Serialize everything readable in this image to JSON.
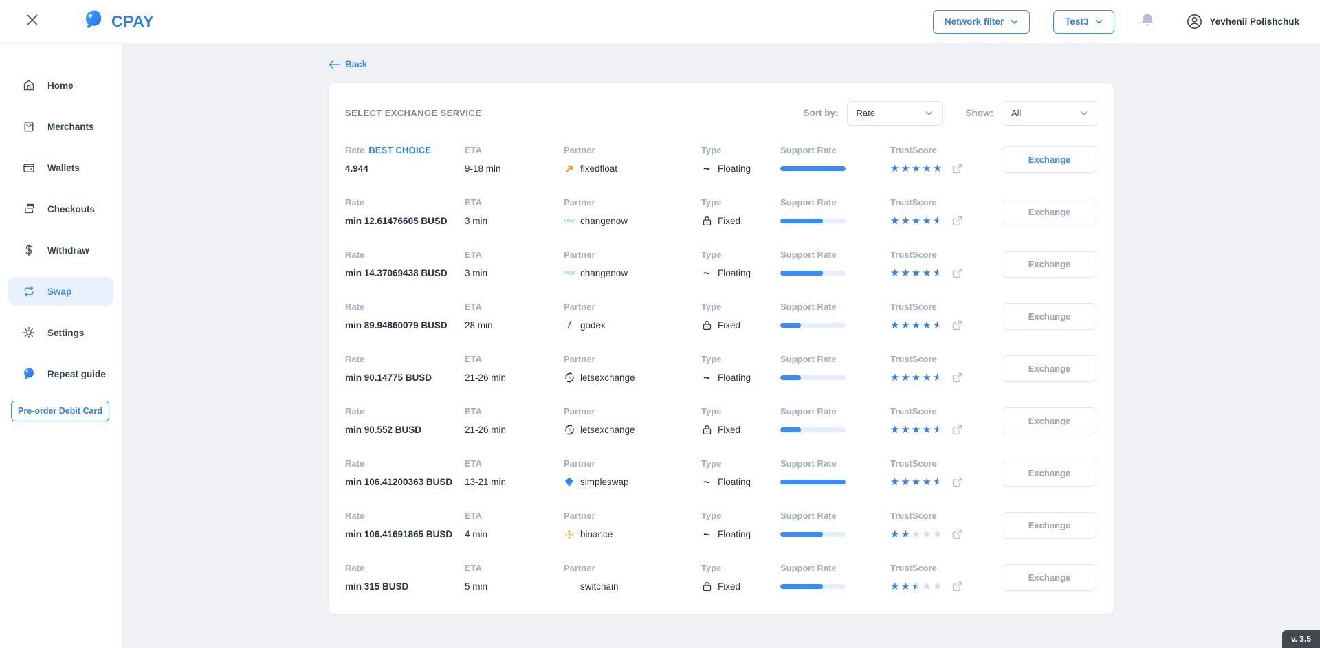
{
  "app": {
    "name": "CPAY",
    "version": "v. 3.5"
  },
  "header": {
    "network_filter_label": "Network filter",
    "account_label": "Test3",
    "user_name": "Yevhenii Polishchuk"
  },
  "sidebar": {
    "items": [
      {
        "id": "home",
        "label": "Home",
        "icon": "home",
        "active": false
      },
      {
        "id": "merchants",
        "label": "Merchants",
        "icon": "bag",
        "active": false
      },
      {
        "id": "wallets",
        "label": "Wallets",
        "icon": "wallet",
        "active": false
      },
      {
        "id": "checkouts",
        "label": "Checkouts",
        "icon": "checkout",
        "active": false
      },
      {
        "id": "withdraw",
        "label": "Withdraw",
        "icon": "dollar",
        "active": false
      },
      {
        "id": "swap",
        "label": "Swap",
        "icon": "swap",
        "active": true
      },
      {
        "id": "settings",
        "label": "Settings",
        "icon": "gear",
        "active": false
      },
      {
        "id": "repeat-guide",
        "label": "Repeat guide",
        "icon": "cpay",
        "active": false
      }
    ],
    "preorder_label": "Pre-order Debit Card"
  },
  "main": {
    "back_label": "Back",
    "panel_title": "SELECT EXCHANGE SERVICE",
    "sort_by_label": "Sort by:",
    "sort_by_value": "Rate",
    "show_label": "Show:",
    "show_value": "All",
    "best_choice_label": "BEST CHOICE",
    "exchange_label": "Exchange",
    "columns": {
      "rate": "Rate",
      "eta": "ETA",
      "partner": "Partner",
      "type": "Type",
      "support": "Support Rate",
      "trust": "TrustScore"
    },
    "rows": [
      {
        "rate": "4.944",
        "eta": "9-18 min",
        "partner": "fixedfloat",
        "partner_icon": "fixedfloat",
        "type": "Floating",
        "support_percent": 100,
        "trust_stars": 5,
        "best": true,
        "primary": true
      },
      {
        "rate": "min 12.61476605 BUSD",
        "eta": "3 min",
        "partner": "changenow",
        "partner_icon": "changenow",
        "type": "Fixed",
        "support_percent": 65,
        "trust_stars": 4.5,
        "best": false,
        "primary": false
      },
      {
        "rate": "min 14.37069438 BUSD",
        "eta": "3 min",
        "partner": "changenow",
        "partner_icon": "changenow",
        "type": "Floating",
        "support_percent": 65,
        "trust_stars": 4.5,
        "best": false,
        "primary": false
      },
      {
        "rate": "min 89.94860079 BUSD",
        "eta": "28 min",
        "partner": "godex",
        "partner_icon": "godex",
        "type": "Fixed",
        "support_percent": 32,
        "trust_stars": 4.5,
        "best": false,
        "primary": false
      },
      {
        "rate": "min 90.14775 BUSD",
        "eta": "21-26 min",
        "partner": "letsexchange",
        "partner_icon": "letsexchange",
        "type": "Floating",
        "support_percent": 32,
        "trust_stars": 4.5,
        "best": false,
        "primary": false
      },
      {
        "rate": "min 90.552 BUSD",
        "eta": "21-26 min",
        "partner": "letsexchange",
        "partner_icon": "letsexchange",
        "type": "Fixed",
        "support_percent": 32,
        "trust_stars": 4.5,
        "best": false,
        "primary": false
      },
      {
        "rate": "min 106.41200363 BUSD",
        "eta": "13-21 min",
        "partner": "simpleswap",
        "partner_icon": "simpleswap",
        "type": "Floating",
        "support_percent": 100,
        "trust_stars": 4.5,
        "best": false,
        "primary": false
      },
      {
        "rate": "min 106.41691865 BUSD",
        "eta": "4 min",
        "partner": "binance",
        "partner_icon": "binance",
        "type": "Floating",
        "support_percent": 65,
        "trust_stars": 2,
        "best": false,
        "primary": false
      },
      {
        "rate": "min 315 BUSD",
        "eta": "5 min",
        "partner": "switchain",
        "partner_icon": "none",
        "type": "Fixed",
        "support_percent": 65,
        "trust_stars": 2.5,
        "best": false,
        "primary": false
      }
    ]
  },
  "colors": {
    "primary_blue": "#2F7FF2",
    "sidebar_active_bg": "#E9F1FD",
    "page_bg": "#EFF1F4",
    "label_gray": "#A6AEBF",
    "value_dark": "#2B3244",
    "star_blue": "#2F82F1",
    "star_empty": "#D6DCE6",
    "bar_fill": "#3D8BF8",
    "bar_track": "#E7EEFB",
    "changenow_green": "#7CE0A3",
    "fixedfloat_orange": "#F7931A",
    "binance_yellow": "#F3BA2F",
    "badge_bg": "#43474E"
  }
}
